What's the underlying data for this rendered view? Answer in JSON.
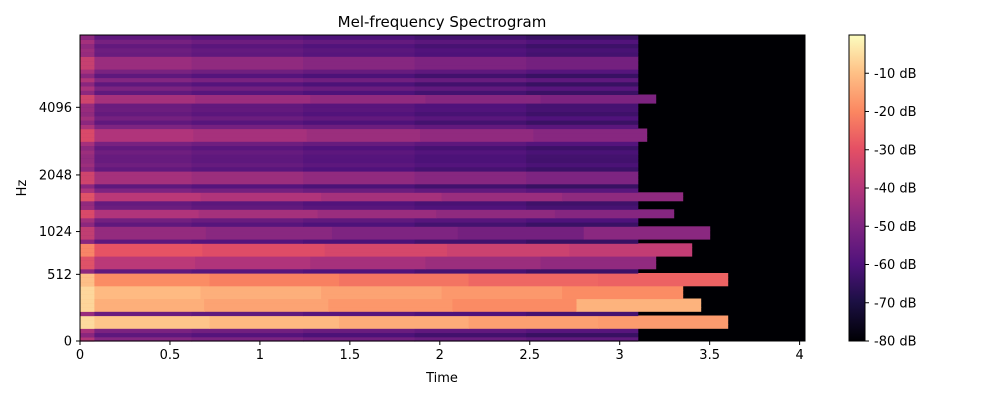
{
  "chart_data": {
    "type": "heatmap",
    "title": "Mel-frequency Spectrogram",
    "xlabel": "Time",
    "ylabel": "Hz",
    "xlim": [
      0,
      4.03
    ],
    "x_ticks": [
      0,
      0.5,
      1,
      1.5,
      2,
      2.5,
      3,
      3.5,
      4
    ],
    "x_tick_labels": [
      "0",
      "0.5",
      "1",
      "1.5",
      "2",
      "2.5",
      "3",
      "3.5",
      "4"
    ],
    "y_scale": "mel",
    "y_ticks": [
      0,
      512,
      1024,
      2048,
      4096
    ],
    "y_tick_labels": [
      "0",
      "512",
      "1024",
      "2048",
      "4096"
    ],
    "colorbar": {
      "colormap": "magma",
      "range_db": [
        -80,
        0
      ],
      "ticks": [
        -80,
        -70,
        -60,
        -50,
        -40,
        -30,
        -20,
        -10
      ],
      "tick_labels": [
        "-80 dB",
        "-70 dB",
        "-60 dB",
        "-50 dB",
        "-40 dB",
        "-30 dB",
        "-20 dB",
        "-10 dB"
      ]
    },
    "sound_end_time_s": 3.1,
    "harmonic_bands_hz": [
      {
        "freq": 120,
        "level_db": -8,
        "decay_end_s": 3.6
      },
      {
        "freq": 240,
        "level_db": -12,
        "decay_end_s": 3.45
      },
      {
        "freq": 340,
        "level_db": -10,
        "decay_end_s": 3.35
      },
      {
        "freq": 470,
        "level_db": -18,
        "decay_end_s": 3.6
      },
      {
        "freq": 640,
        "level_db": -38,
        "decay_end_s": 3.2
      },
      {
        "freq": 780,
        "level_db": -28,
        "decay_end_s": 3.4
      },
      {
        "freq": 1000,
        "level_db": -45,
        "decay_end_s": 3.5
      },
      {
        "freq": 1300,
        "level_db": -40,
        "decay_end_s": 3.3
      },
      {
        "freq": 1600,
        "level_db": -38,
        "decay_end_s": 3.35
      },
      {
        "freq": 2000,
        "level_db": -42,
        "decay_end_s": 3.1
      },
      {
        "freq": 3100,
        "level_db": -40,
        "decay_end_s": 3.15
      },
      {
        "freq": 4500,
        "level_db": -42,
        "decay_end_s": 3.2
      },
      {
        "freq": 6200,
        "level_db": -44,
        "decay_end_s": 3.1
      }
    ]
  }
}
